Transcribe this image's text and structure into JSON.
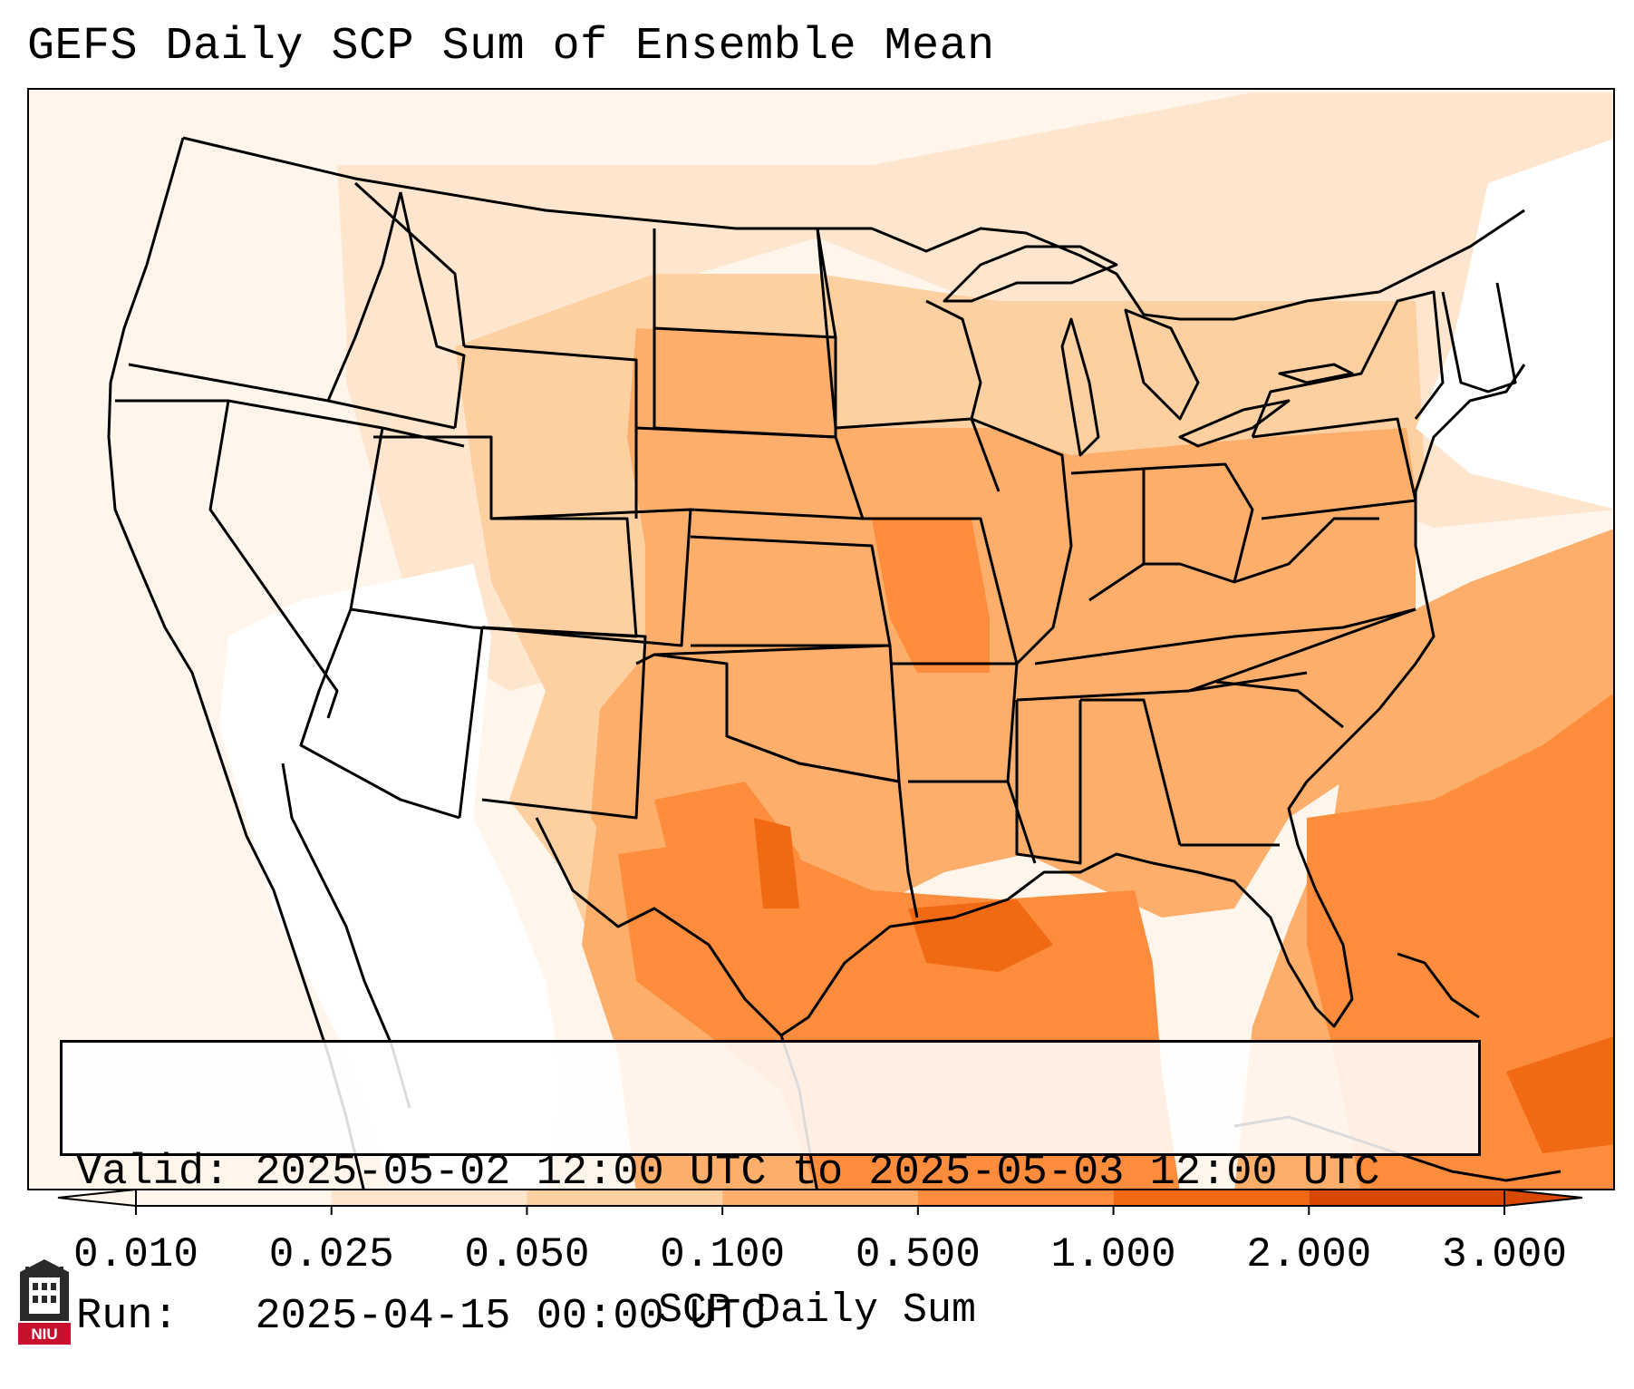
{
  "title": "GEFS Daily SCP Sum of Ensemble Mean",
  "info_box": {
    "valid_label": "Valid:",
    "valid_value": "2025-05-02 12:00 UTC to 2025-05-03 12:00 UTC",
    "run_label": "Run:",
    "run_value": "2025-04-15 00:00 UTC"
  },
  "colorbar": {
    "label": "SCP Daily Sum",
    "ticks": [
      "0.010",
      "0.025",
      "0.050",
      "0.100",
      "0.500",
      "1.000",
      "2.000",
      "3.000"
    ],
    "colors": [
      "#fff5eb",
      "#fee6ce",
      "#fdd0a2",
      "#fdae6b",
      "#fd8d3c",
      "#f16913",
      "#d94801"
    ],
    "extend": "both"
  },
  "logo": {
    "text": "NIU",
    "icon": "university-tower-icon"
  },
  "map": {
    "region": "CONUS",
    "colors": {
      "low": "#fff5eb",
      "light": "#fee6ce",
      "moderate": "#fdd0a2",
      "elevated": "#fdae6b",
      "high": "#fd8d3c",
      "very_high": "#f16913",
      "border": "#000000"
    }
  }
}
